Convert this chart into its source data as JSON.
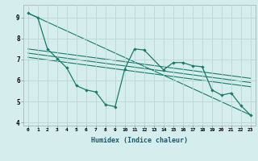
{
  "xlabel": "Humidex (Indice chaleur)",
  "ylabel": "",
  "background_color": "#d5eeed",
  "grid_color": "#b8d8d5",
  "line_color": "#1a7a6a",
  "xlim": [
    -0.5,
    23.5
  ],
  "ylim": [
    3.85,
    9.6
  ],
  "yticks": [
    4,
    5,
    6,
    7,
    8,
    9
  ],
  "xticks": [
    0,
    1,
    2,
    3,
    4,
    5,
    6,
    7,
    8,
    9,
    10,
    11,
    12,
    13,
    14,
    15,
    16,
    17,
    18,
    19,
    20,
    21,
    22,
    23
  ],
  "series1_x": [
    0,
    1,
    2,
    3,
    4,
    5,
    6,
    7,
    8,
    9,
    10,
    11,
    12,
    14,
    15,
    16,
    17,
    18,
    19,
    20,
    21,
    22,
    23
  ],
  "series1_y": [
    9.2,
    9.0,
    7.5,
    7.05,
    6.6,
    5.75,
    5.55,
    5.45,
    4.85,
    4.75,
    6.55,
    7.5,
    7.45,
    6.5,
    6.85,
    6.85,
    6.7,
    6.65,
    5.55,
    5.3,
    5.4,
    4.8,
    4.35
  ],
  "series2_x": [
    0,
    23
  ],
  "series2_y": [
    9.2,
    4.35
  ],
  "regression_lines": [
    {
      "x": [
        0,
        23
      ],
      "y": [
        7.5,
        6.1
      ]
    },
    {
      "x": [
        0,
        23
      ],
      "y": [
        7.3,
        5.9
      ]
    },
    {
      "x": [
        0,
        23
      ],
      "y": [
        7.1,
        5.7
      ]
    }
  ]
}
